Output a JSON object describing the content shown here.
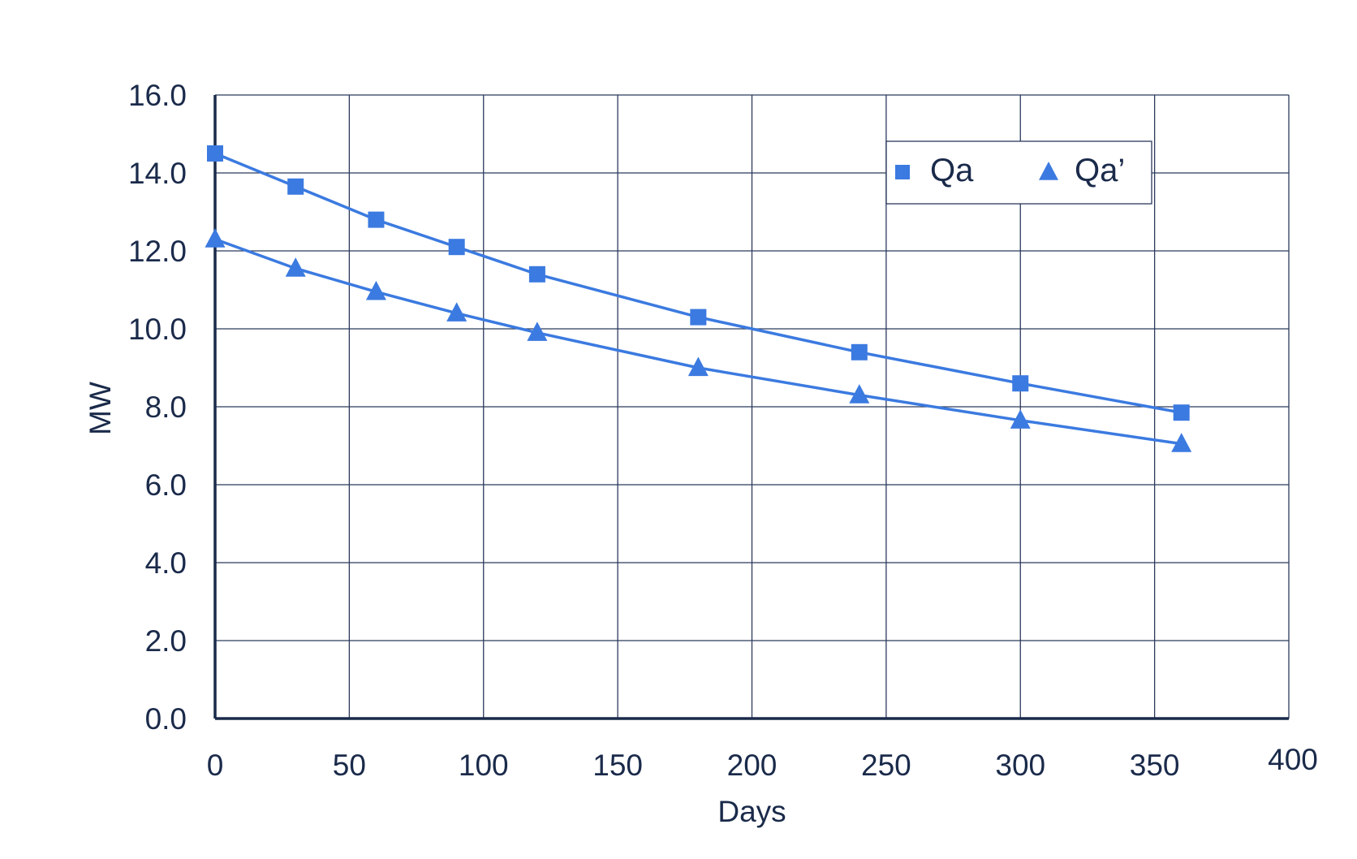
{
  "chart_data": {
    "type": "line",
    "title": "",
    "xlabel": "Days",
    "ylabel": "MW",
    "xlim": [
      0,
      400
    ],
    "ylim": [
      0,
      16
    ],
    "x_ticks": [
      "0",
      "50",
      "100",
      "150",
      "200",
      "250",
      "300",
      "350",
      "400"
    ],
    "y_ticks": [
      "0.0",
      "2.0",
      "4.0",
      "6.0",
      "8.0",
      "10.0",
      "12.0",
      "14.0",
      "16.0"
    ],
    "grid": true,
    "legend_position": "top-right",
    "colors": {
      "series": "#3b7ae0",
      "axis": "#1a2a4a",
      "grid": "#2b3a5c"
    },
    "series": [
      {
        "name": "Qa",
        "marker": "square",
        "x": [
          0,
          30,
          60,
          90,
          120,
          180,
          240,
          300,
          360
        ],
        "values": [
          14.5,
          13.65,
          12.8,
          12.1,
          11.4,
          10.3,
          9.4,
          8.6,
          7.85
        ]
      },
      {
        "name": "Qa’",
        "marker": "triangle",
        "x": [
          0,
          30,
          60,
          90,
          120,
          180,
          240,
          300,
          360
        ],
        "values": [
          12.3,
          11.55,
          10.95,
          10.4,
          9.9,
          9.0,
          8.3,
          7.65,
          7.05
        ]
      }
    ]
  }
}
